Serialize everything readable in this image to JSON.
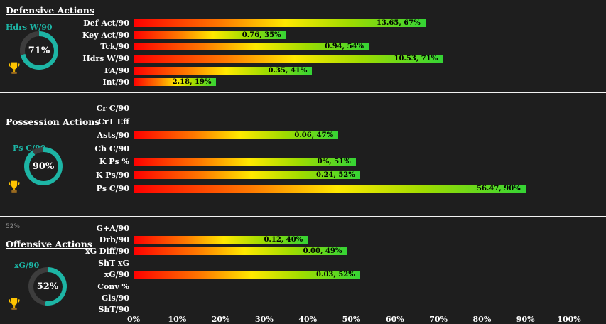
{
  "colors": {
    "background": "#1e1e1e",
    "accent_teal": "#1db5a5",
    "divider": "#f2f2f2",
    "bar_gradient_start": "#ff0000",
    "bar_gradient_mid": "#ffe900",
    "bar_gradient_end": "#35d435",
    "bar_label": "#000000",
    "text": "#ffffff",
    "trophy_gold": "#ffc400"
  },
  "x_axis": {
    "ticks": [
      "0%",
      "10%",
      "20%",
      "30%",
      "40%",
      "50%",
      "60%",
      "70%",
      "80%",
      "90%",
      "100%"
    ]
  },
  "sections": [
    {
      "title": "Defensive Actions",
      "gauge": {
        "label": "Hdrs W/90",
        "value": "71%",
        "pct": 71
      },
      "rows": [
        {
          "label": "Def Act/90",
          "pct": 67,
          "value_label": "13.65, 67%"
        },
        {
          "label": "Key Act/90",
          "pct": 35,
          "value_label": "0.76, 35%"
        },
        {
          "label": "Tck/90",
          "pct": 54,
          "value_label": "0.94, 54%"
        },
        {
          "label": "Hdrs W/90",
          "pct": 71,
          "value_label": "10.53, 71%"
        },
        {
          "label": "FA/90",
          "pct": 41,
          "value_label": "0.35, 41%"
        },
        {
          "label": "Int/90",
          "pct": 19,
          "value_label": "2.18, 19%"
        }
      ]
    },
    {
      "title": "Possession Actions",
      "gauge": {
        "label": "Ps C/90",
        "value": "90%",
        "pct": 90
      },
      "rows": [
        {
          "label": "Cr C/90",
          "pct": 0,
          "value_label": ""
        },
        {
          "label": "CrT Eff",
          "pct": 0,
          "value_label": ""
        },
        {
          "label": "Asts/90",
          "pct": 47,
          "value_label": "0.06, 47%"
        },
        {
          "label": "Ch C/90",
          "pct": 0,
          "value_label": ""
        },
        {
          "label": "K Ps %",
          "pct": 51,
          "value_label": "0%, 51%"
        },
        {
          "label": "K Ps/90",
          "pct": 52,
          "value_label": "0.24, 52%"
        },
        {
          "label": "Ps C/90",
          "pct": 90,
          "value_label": "56.47, 90%"
        }
      ]
    },
    {
      "title": "Offensive Actions",
      "note": "52%",
      "gauge": {
        "label": "xG/90",
        "value": "52%",
        "pct": 52
      },
      "rows": [
        {
          "label": "G+A/90",
          "pct": 0,
          "value_label": ""
        },
        {
          "label": "Drb/90",
          "pct": 40,
          "value_label": "0.12, 40%"
        },
        {
          "label": "xG Diff/90",
          "pct": 49,
          "value_label": "0.00, 49%"
        },
        {
          "label": "ShT xG",
          "pct": 0,
          "value_label": ""
        },
        {
          "label": "xG/90",
          "pct": 52,
          "value_label": "0.03, 52%"
        },
        {
          "label": "Conv %",
          "pct": 0,
          "value_label": ""
        },
        {
          "label": "Gls/90",
          "pct": 0,
          "value_label": ""
        },
        {
          "label": "ShT/90",
          "pct": 0,
          "value_label": ""
        }
      ]
    }
  ],
  "chart_data": [
    {
      "type": "bar",
      "orientation": "horizontal",
      "title": "Defensive Actions",
      "categories": [
        "Def Act/90",
        "Key Act/90",
        "Tck/90",
        "Hdrs W/90",
        "FA/90",
        "Int/90"
      ],
      "values": [
        67,
        35,
        54,
        71,
        41,
        19
      ],
      "data_labels": [
        "13.65, 67%",
        "0.76, 35%",
        "0.94, 54%",
        "10.53, 71%",
        "0.35, 41%",
        "2.18, 19%"
      ],
      "xlabel": "",
      "ylabel": "",
      "xlim": [
        0,
        100
      ],
      "x_ticks": [
        "0%",
        "10%",
        "20%",
        "30%",
        "40%",
        "50%",
        "60%",
        "70%",
        "80%",
        "90%",
        "100%"
      ],
      "grid": false,
      "legend": false,
      "gauge": {
        "label": "Hdrs W/90",
        "value": 71
      }
    },
    {
      "type": "bar",
      "orientation": "horizontal",
      "title": "Possession Actions",
      "categories": [
        "Cr C/90",
        "CrT Eff",
        "Asts/90",
        "Ch C/90",
        "K Ps %",
        "K Ps/90",
        "Ps C/90"
      ],
      "values": [
        null,
        null,
        47,
        null,
        51,
        52,
        90
      ],
      "data_labels": [
        "",
        "",
        "0.06, 47%",
        "",
        "0%, 51%",
        "0.24, 52%",
        "56.47, 90%"
      ],
      "xlabel": "",
      "ylabel": "",
      "xlim": [
        0,
        100
      ],
      "x_ticks": [
        "0%",
        "10%",
        "20%",
        "30%",
        "40%",
        "50%",
        "60%",
        "70%",
        "80%",
        "90%",
        "100%"
      ],
      "grid": false,
      "legend": false,
      "gauge": {
        "label": "Ps C/90",
        "value": 90
      }
    },
    {
      "type": "bar",
      "orientation": "horizontal",
      "title": "Offensive Actions",
      "categories": [
        "G+A/90",
        "Drb/90",
        "xG Diff/90",
        "ShT xG",
        "xG/90",
        "Conv %",
        "Gls/90",
        "ShT/90"
      ],
      "values": [
        null,
        40,
        49,
        null,
        52,
        null,
        null,
        null
      ],
      "data_labels": [
        "",
        "0.12, 40%",
        "0.00, 49%",
        "",
        "0.03, 52%",
        "",
        "",
        ""
      ],
      "xlabel": "",
      "ylabel": "",
      "xlim": [
        0,
        100
      ],
      "x_ticks": [
        "0%",
        "10%",
        "20%",
        "30%",
        "40%",
        "50%",
        "60%",
        "70%",
        "80%",
        "90%",
        "100%"
      ],
      "grid": false,
      "legend": false,
      "gauge": {
        "label": "xG/90",
        "value": 52
      }
    }
  ]
}
